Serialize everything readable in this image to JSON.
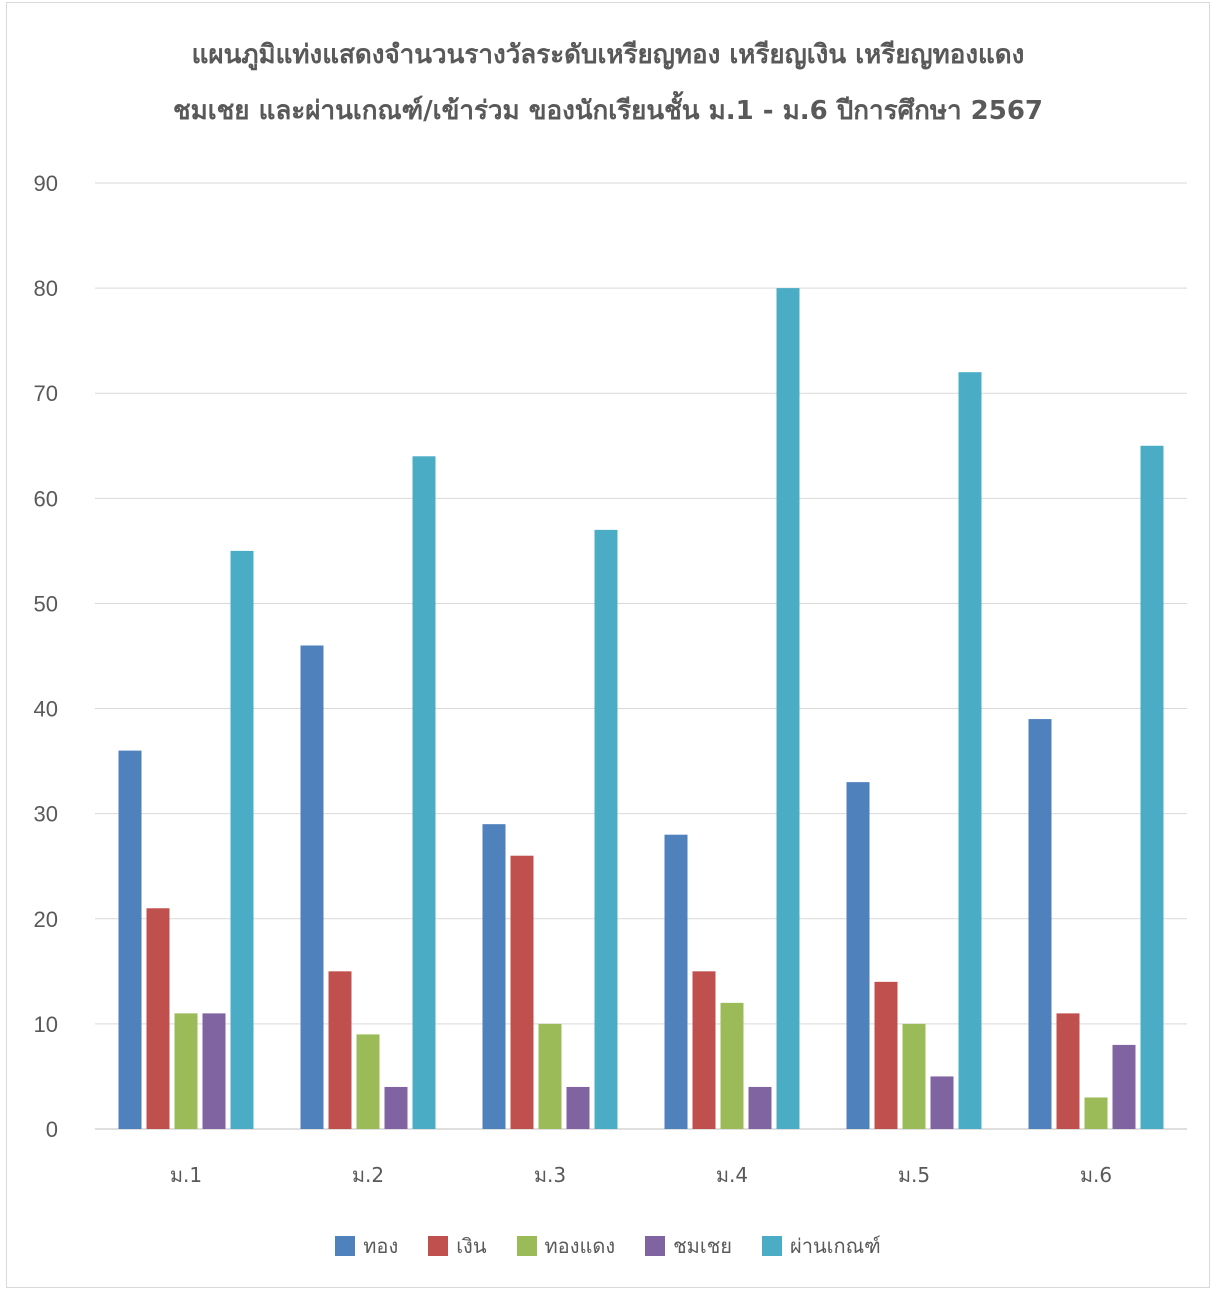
{
  "chart_data": {
    "type": "bar",
    "title": "แผนภูมิแท่งแสดงจำนวนรางวัลระดับเหรียญทอง เหรียญเงิน เหรียญทองแดง",
    "subtitle": "ชมเชย  และผ่านเกณฑ์/เข้าร่วม ของนักเรียนชั้น ม.1 - ม.6 ปีการศึกษา 2567",
    "categories": [
      "ม.1",
      "ม.2",
      "ม.3",
      "ม.4",
      "ม.5",
      "ม.6"
    ],
    "series": [
      {
        "name": "ทอง",
        "color": "#4f81bd",
        "values": [
          36,
          46,
          29,
          28,
          33,
          39
        ]
      },
      {
        "name": "เงิน",
        "color": "#c0504d",
        "values": [
          21,
          15,
          26,
          15,
          14,
          11
        ]
      },
      {
        "name": "ทองแดง",
        "color": "#9bbb59",
        "values": [
          11,
          9,
          10,
          12,
          10,
          3
        ]
      },
      {
        "name": "ชมเชย",
        "color": "#8064a2",
        "values": [
          11,
          4,
          4,
          4,
          5,
          8
        ]
      },
      {
        "name": "ผ่านเกณฑ์",
        "color": "#4bacc6",
        "values": [
          55,
          64,
          57,
          80,
          72,
          65
        ]
      }
    ],
    "ylim": [
      0,
      90
    ],
    "yticks": [
      "0",
      "10",
      "20",
      "30",
      "40",
      "50",
      "60",
      "70",
      "80",
      "90"
    ],
    "grid": true,
    "legend_position": "bottom"
  }
}
